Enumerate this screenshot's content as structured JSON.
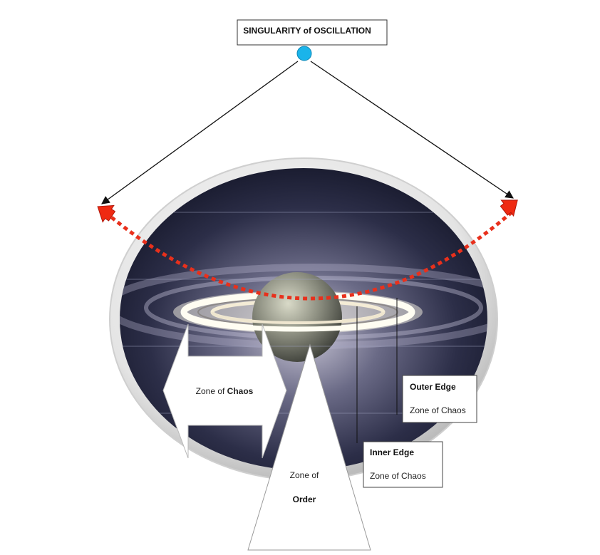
{
  "title_box": {
    "label": "SINGULARITY of OSCILLATION"
  },
  "chaos_zone": {
    "prefix": "Zone of ",
    "emphasis": "Chaos"
  },
  "order_zone": {
    "line1": "Zone of",
    "line2": "Order"
  },
  "outer_edge": {
    "title": "Outer Edge",
    "subtitle": "Zone of Chaos"
  },
  "inner_edge": {
    "title": "Inner Edge",
    "subtitle": "Zone of Chaos"
  },
  "colors": {
    "singularity_dot": "#1ab4ea",
    "oscillation_path": "#e8301c",
    "oscillation_arrow": "#ef2a12",
    "frame": "#d8d8d8"
  },
  "icons": {
    "singularity": "circle-dot",
    "left_end": "arrow-head",
    "right_end": "arrow-head"
  }
}
